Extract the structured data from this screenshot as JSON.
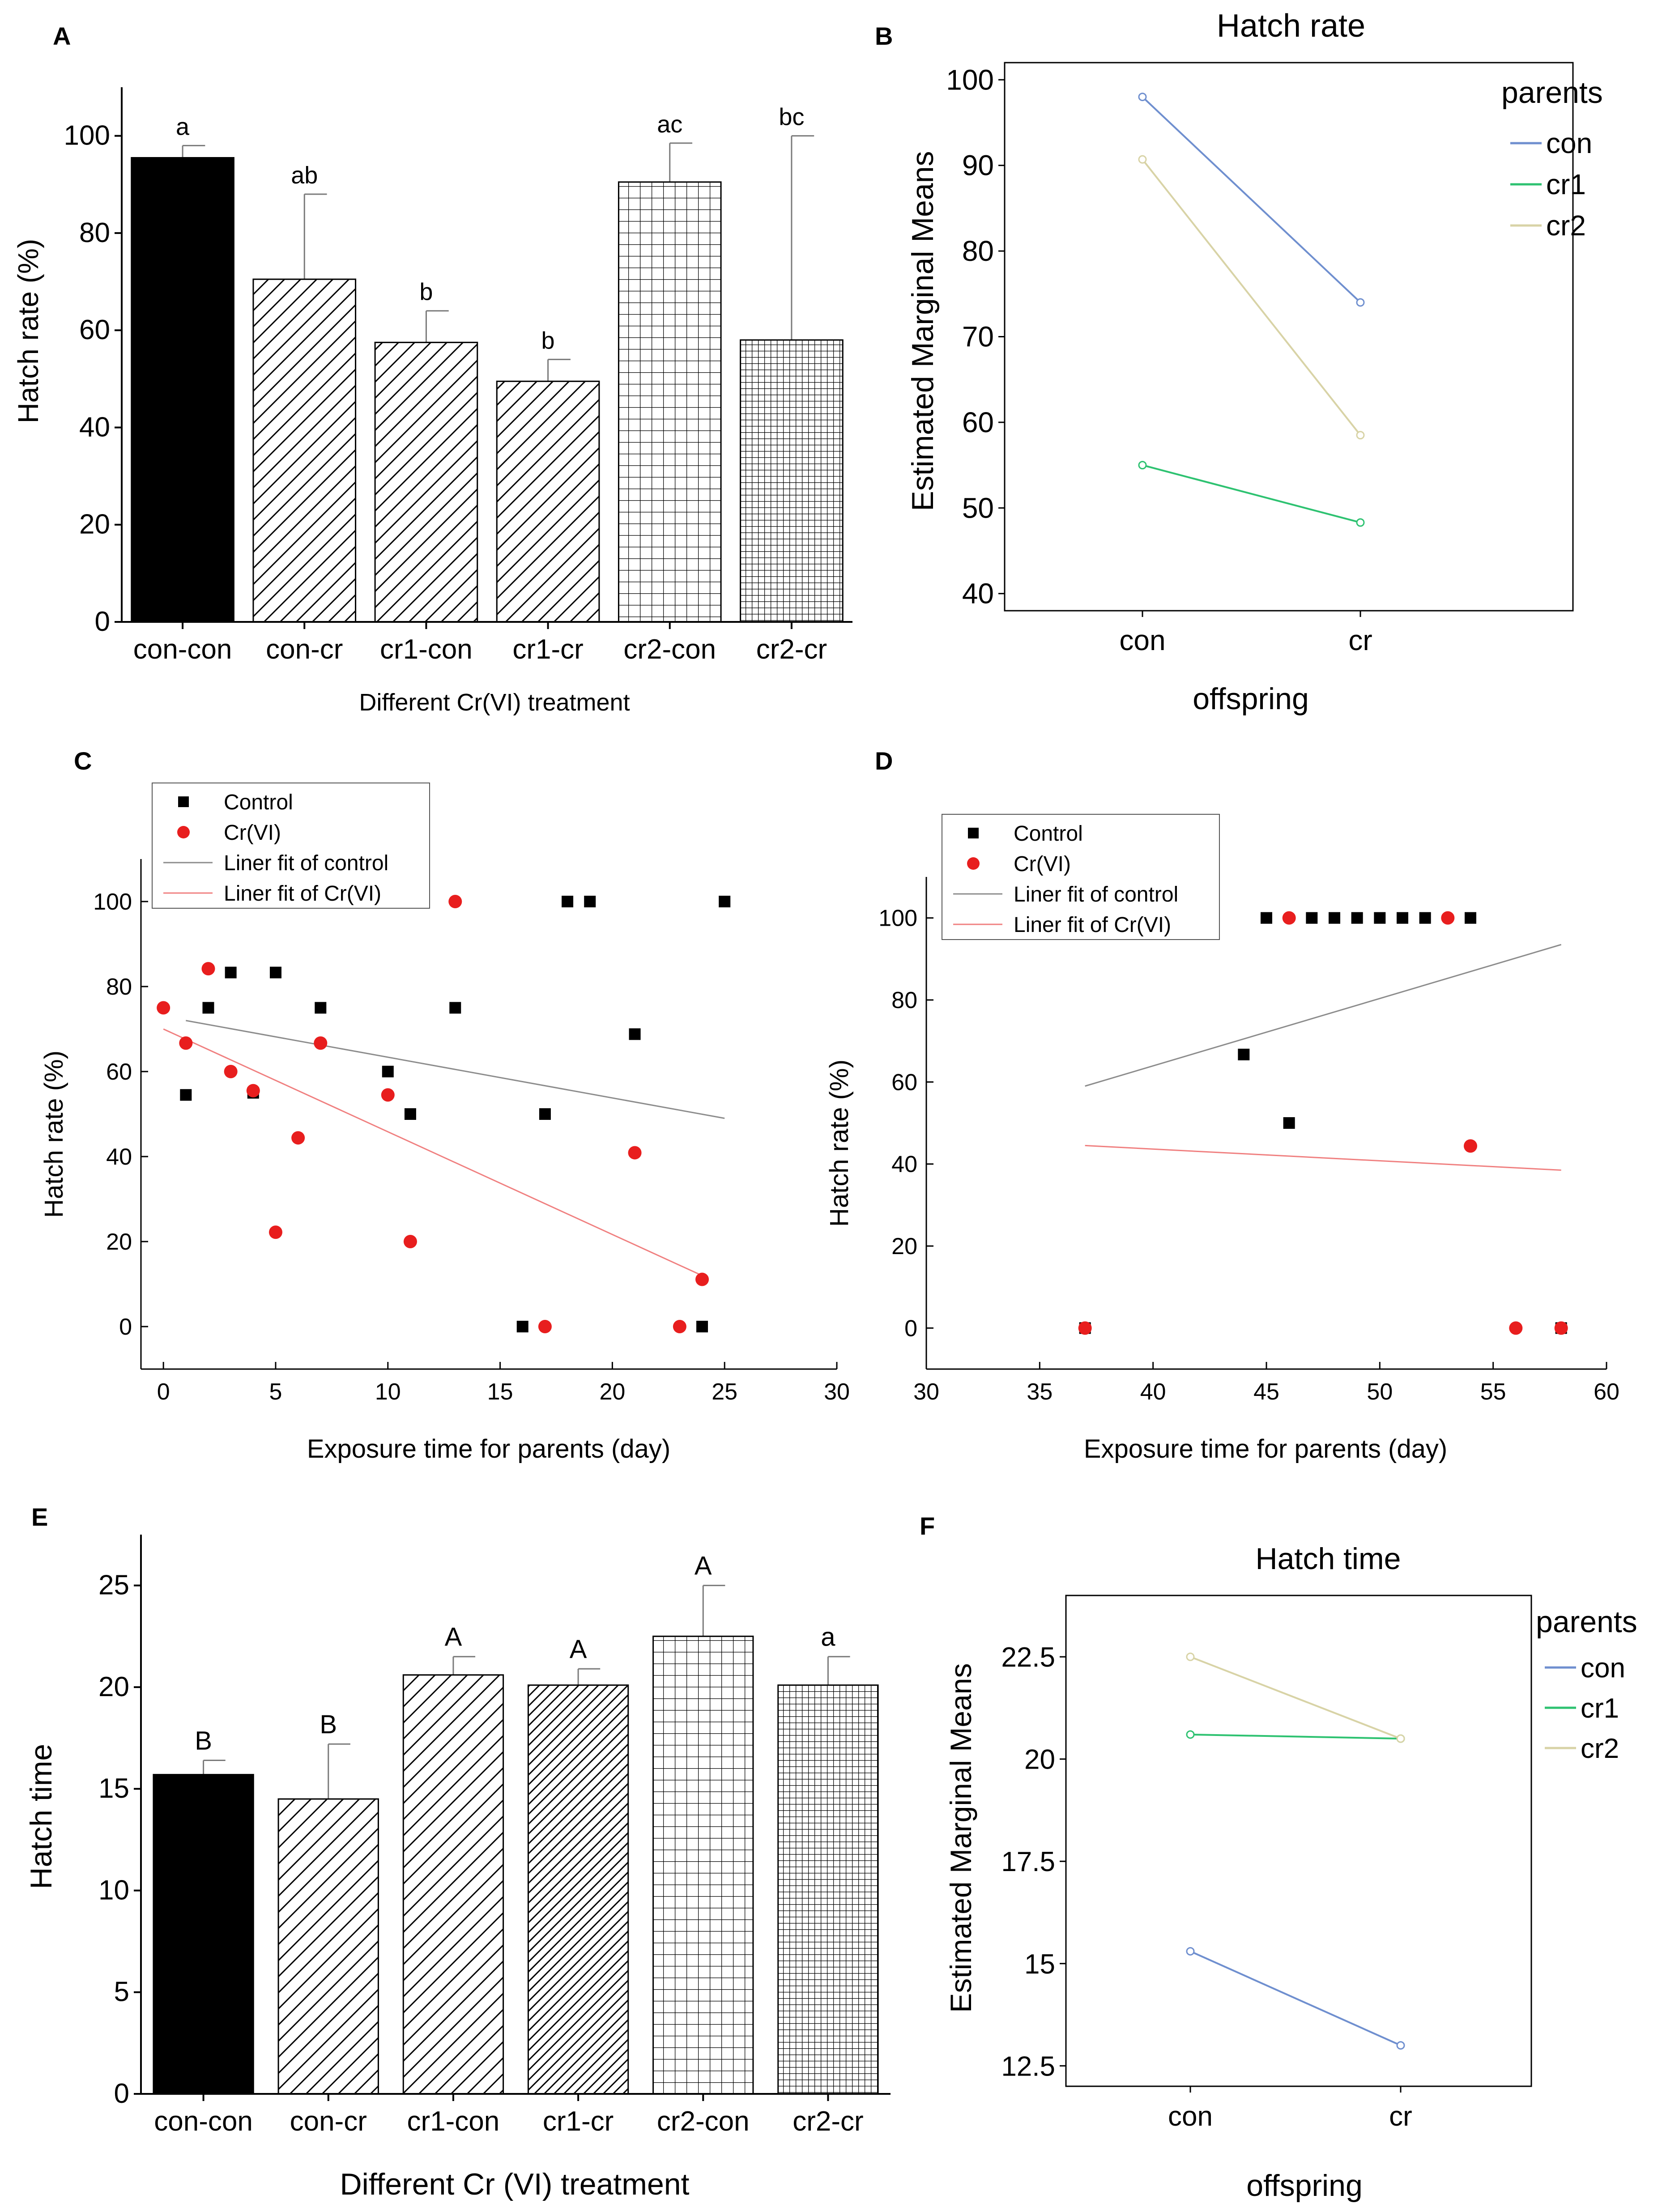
{
  "colors": {
    "ink": "#000000",
    "red": "#e81e1e",
    "con_line": "#6f8fcf",
    "cr1_line": "#2ec271",
    "cr2_line": "#d8d3a6",
    "fit_control": "#8c8c8c",
    "fit_cr": "#f08080"
  },
  "panels": {
    "A": "A",
    "B": "B",
    "C": "C",
    "D": "D",
    "E": "E",
    "F": "F"
  },
  "chart_data": [
    {
      "id": "A",
      "type": "bar",
      "title": "",
      "xlabel": "Different Cr(VI) treatment",
      "ylabel": "Hatch rate (%)",
      "ylim": [
        0,
        110
      ],
      "yticks": [
        0,
        20,
        40,
        60,
        80,
        100
      ],
      "categories": [
        "con-con",
        "con-cr",
        "cr1-con",
        "cr1-cr",
        "cr2-con",
        "cr2-cr"
      ],
      "values": [
        95.5,
        70.5,
        57.5,
        49.5,
        90.5,
        58
      ],
      "errors": [
        2.5,
        17.5,
        6.5,
        4.5,
        8,
        42
      ],
      "letters": [
        "a",
        "ab",
        "b",
        "b",
        "ac",
        "bc"
      ],
      "patterns": [
        "solid",
        "diag",
        "diag",
        "diag",
        "grid",
        "finegrid"
      ]
    },
    {
      "id": "B",
      "type": "line",
      "title": "Hatch rate",
      "xlabel": "offspring",
      "ylabel": "Estimated Marginal Means",
      "ylim": [
        38,
        102
      ],
      "yticks": [
        40,
        50,
        60,
        70,
        80,
        90,
        100
      ],
      "categories": [
        "con",
        "cr"
      ],
      "legend_title": "parents",
      "legend_position": "right",
      "series": [
        {
          "name": "con",
          "values": [
            98,
            74
          ],
          "color": "#6f8fcf"
        },
        {
          "name": "cr1",
          "values": [
            55,
            48.3
          ],
          "color": "#2ec271"
        },
        {
          "name": "cr2",
          "values": [
            90.7,
            58.5
          ],
          "color": "#d8d3a6"
        }
      ]
    },
    {
      "id": "C",
      "type": "scatter",
      "title": "",
      "xlabel": "Exposure time for parents (day)",
      "ylabel": "Hatch rate (%)",
      "xlim": [
        -1,
        30
      ],
      "ylim": [
        -10,
        110
      ],
      "xticks": [
        0,
        5,
        10,
        15,
        20,
        25,
        30
      ],
      "yticks": [
        0,
        20,
        40,
        60,
        80,
        100
      ],
      "legend_position": "top-left",
      "legend": [
        "Control",
        "Cr(VI)",
        "Liner fit of control",
        "Liner fit of Cr(VI)"
      ],
      "series": [
        {
          "name": "Control",
          "marker": "square",
          "color": "#000000",
          "points": [
            [
              1,
              54.5
            ],
            [
              2,
              75
            ],
            [
              3,
              83.3
            ],
            [
              4,
              55
            ],
            [
              5,
              83.3
            ],
            [
              7,
              75
            ],
            [
              10,
              60
            ],
            [
              11,
              50
            ],
            [
              13,
              75
            ],
            [
              16,
              0
            ],
            [
              17,
              50
            ],
            [
              18,
              100
            ],
            [
              19,
              100
            ],
            [
              21,
              68.8
            ],
            [
              24,
              0
            ],
            [
              25,
              100
            ]
          ]
        },
        {
          "name": "Cr(VI)",
          "marker": "circle",
          "color": "#e81e1e",
          "points": [
            [
              0,
              75
            ],
            [
              1,
              66.7
            ],
            [
              2,
              84.2
            ],
            [
              3,
              60
            ],
            [
              4,
              55.5
            ],
            [
              5,
              22.2
            ],
            [
              6,
              44.4
            ],
            [
              7,
              66.7
            ],
            [
              10,
              54.5
            ],
            [
              11,
              20
            ],
            [
              13,
              100
            ],
            [
              17,
              0
            ],
            [
              21,
              40.9
            ],
            [
              23,
              0
            ],
            [
              24,
              11.1
            ]
          ]
        }
      ],
      "fits": [
        {
          "name": "Liner fit of control",
          "color": "#8c8c8c",
          "x": [
            1,
            25
          ],
          "y": [
            72,
            49
          ]
        },
        {
          "name": "Liner fit of Cr(VI)",
          "color": "#f08080",
          "x": [
            0,
            24
          ],
          "y": [
            70,
            12
          ]
        }
      ]
    },
    {
      "id": "D",
      "type": "scatter",
      "title": "",
      "xlabel": "Exposure time for parents (day)",
      "ylabel": "Hatch rate (%)",
      "xlim": [
        30,
        60
      ],
      "ylim": [
        -10,
        110
      ],
      "xticks": [
        30,
        35,
        40,
        45,
        50,
        55,
        60
      ],
      "yticks": [
        0,
        20,
        40,
        60,
        80,
        100
      ],
      "legend_position": "top-left",
      "legend": [
        "Control",
        "Cr(VI)",
        "Liner fit of control",
        "Liner fit of Cr(VI)"
      ],
      "series": [
        {
          "name": "Control",
          "marker": "square",
          "color": "#000000",
          "points": [
            [
              37,
              0
            ],
            [
              44,
              66.7
            ],
            [
              45,
              100
            ],
            [
              46,
              50
            ],
            [
              47,
              100
            ],
            [
              48,
              100
            ],
            [
              49,
              100
            ],
            [
              50,
              100
            ],
            [
              51,
              100
            ],
            [
              52,
              100
            ],
            [
              54,
              100
            ],
            [
              58,
              0
            ]
          ]
        },
        {
          "name": "Cr(VI)",
          "marker": "circle",
          "color": "#e81e1e",
          "points": [
            [
              37,
              0
            ],
            [
              46,
              100
            ],
            [
              53,
              100
            ],
            [
              54,
              44.4
            ],
            [
              56,
              0
            ],
            [
              58,
              0
            ]
          ]
        }
      ],
      "fits": [
        {
          "name": "Liner fit of control",
          "color": "#8c8c8c",
          "x": [
            37,
            58
          ],
          "y": [
            59,
            93.5
          ]
        },
        {
          "name": "Liner fit of Cr(VI)",
          "color": "#f08080",
          "x": [
            37,
            58
          ],
          "y": [
            44.5,
            38.5
          ]
        }
      ]
    },
    {
      "id": "E",
      "type": "bar",
      "title": "",
      "xlabel": "Different Cr (VI) treatment",
      "ylabel": "Hatch time",
      "ylim": [
        0,
        27.5
      ],
      "yticks": [
        0,
        5,
        10,
        15,
        20,
        25
      ],
      "categories": [
        "con-con",
        "con-cr",
        "cr1-con",
        "cr1-cr",
        "cr2-con",
        "cr2-cr"
      ],
      "values": [
        15.7,
        14.5,
        20.6,
        20.1,
        22.5,
        20.1
      ],
      "errors": [
        0.7,
        2.7,
        0.9,
        0.8,
        2.5,
        1.4
      ],
      "letters": [
        "B",
        "B",
        "A",
        "A",
        "A",
        "a"
      ],
      "patterns": [
        "solid",
        "diag",
        "diag",
        "diagdense",
        "grid",
        "finegrid"
      ]
    },
    {
      "id": "F",
      "type": "line",
      "title": "Hatch time",
      "xlabel": "offspring",
      "ylabel": "Estimated Marginal Means",
      "ylim": [
        12,
        24
      ],
      "yticks": [
        12.5,
        15.0,
        17.5,
        20.0,
        22.5
      ],
      "categories": [
        "con",
        "cr"
      ],
      "legend_title": "parents",
      "legend_position": "right",
      "series": [
        {
          "name": "con",
          "values": [
            15.3,
            13.0
          ],
          "color": "#6f8fcf"
        },
        {
          "name": "cr1",
          "values": [
            20.6,
            20.5
          ],
          "color": "#2ec271"
        },
        {
          "name": "cr2",
          "values": [
            22.5,
            20.5
          ],
          "color": "#d8d3a6"
        }
      ]
    }
  ]
}
